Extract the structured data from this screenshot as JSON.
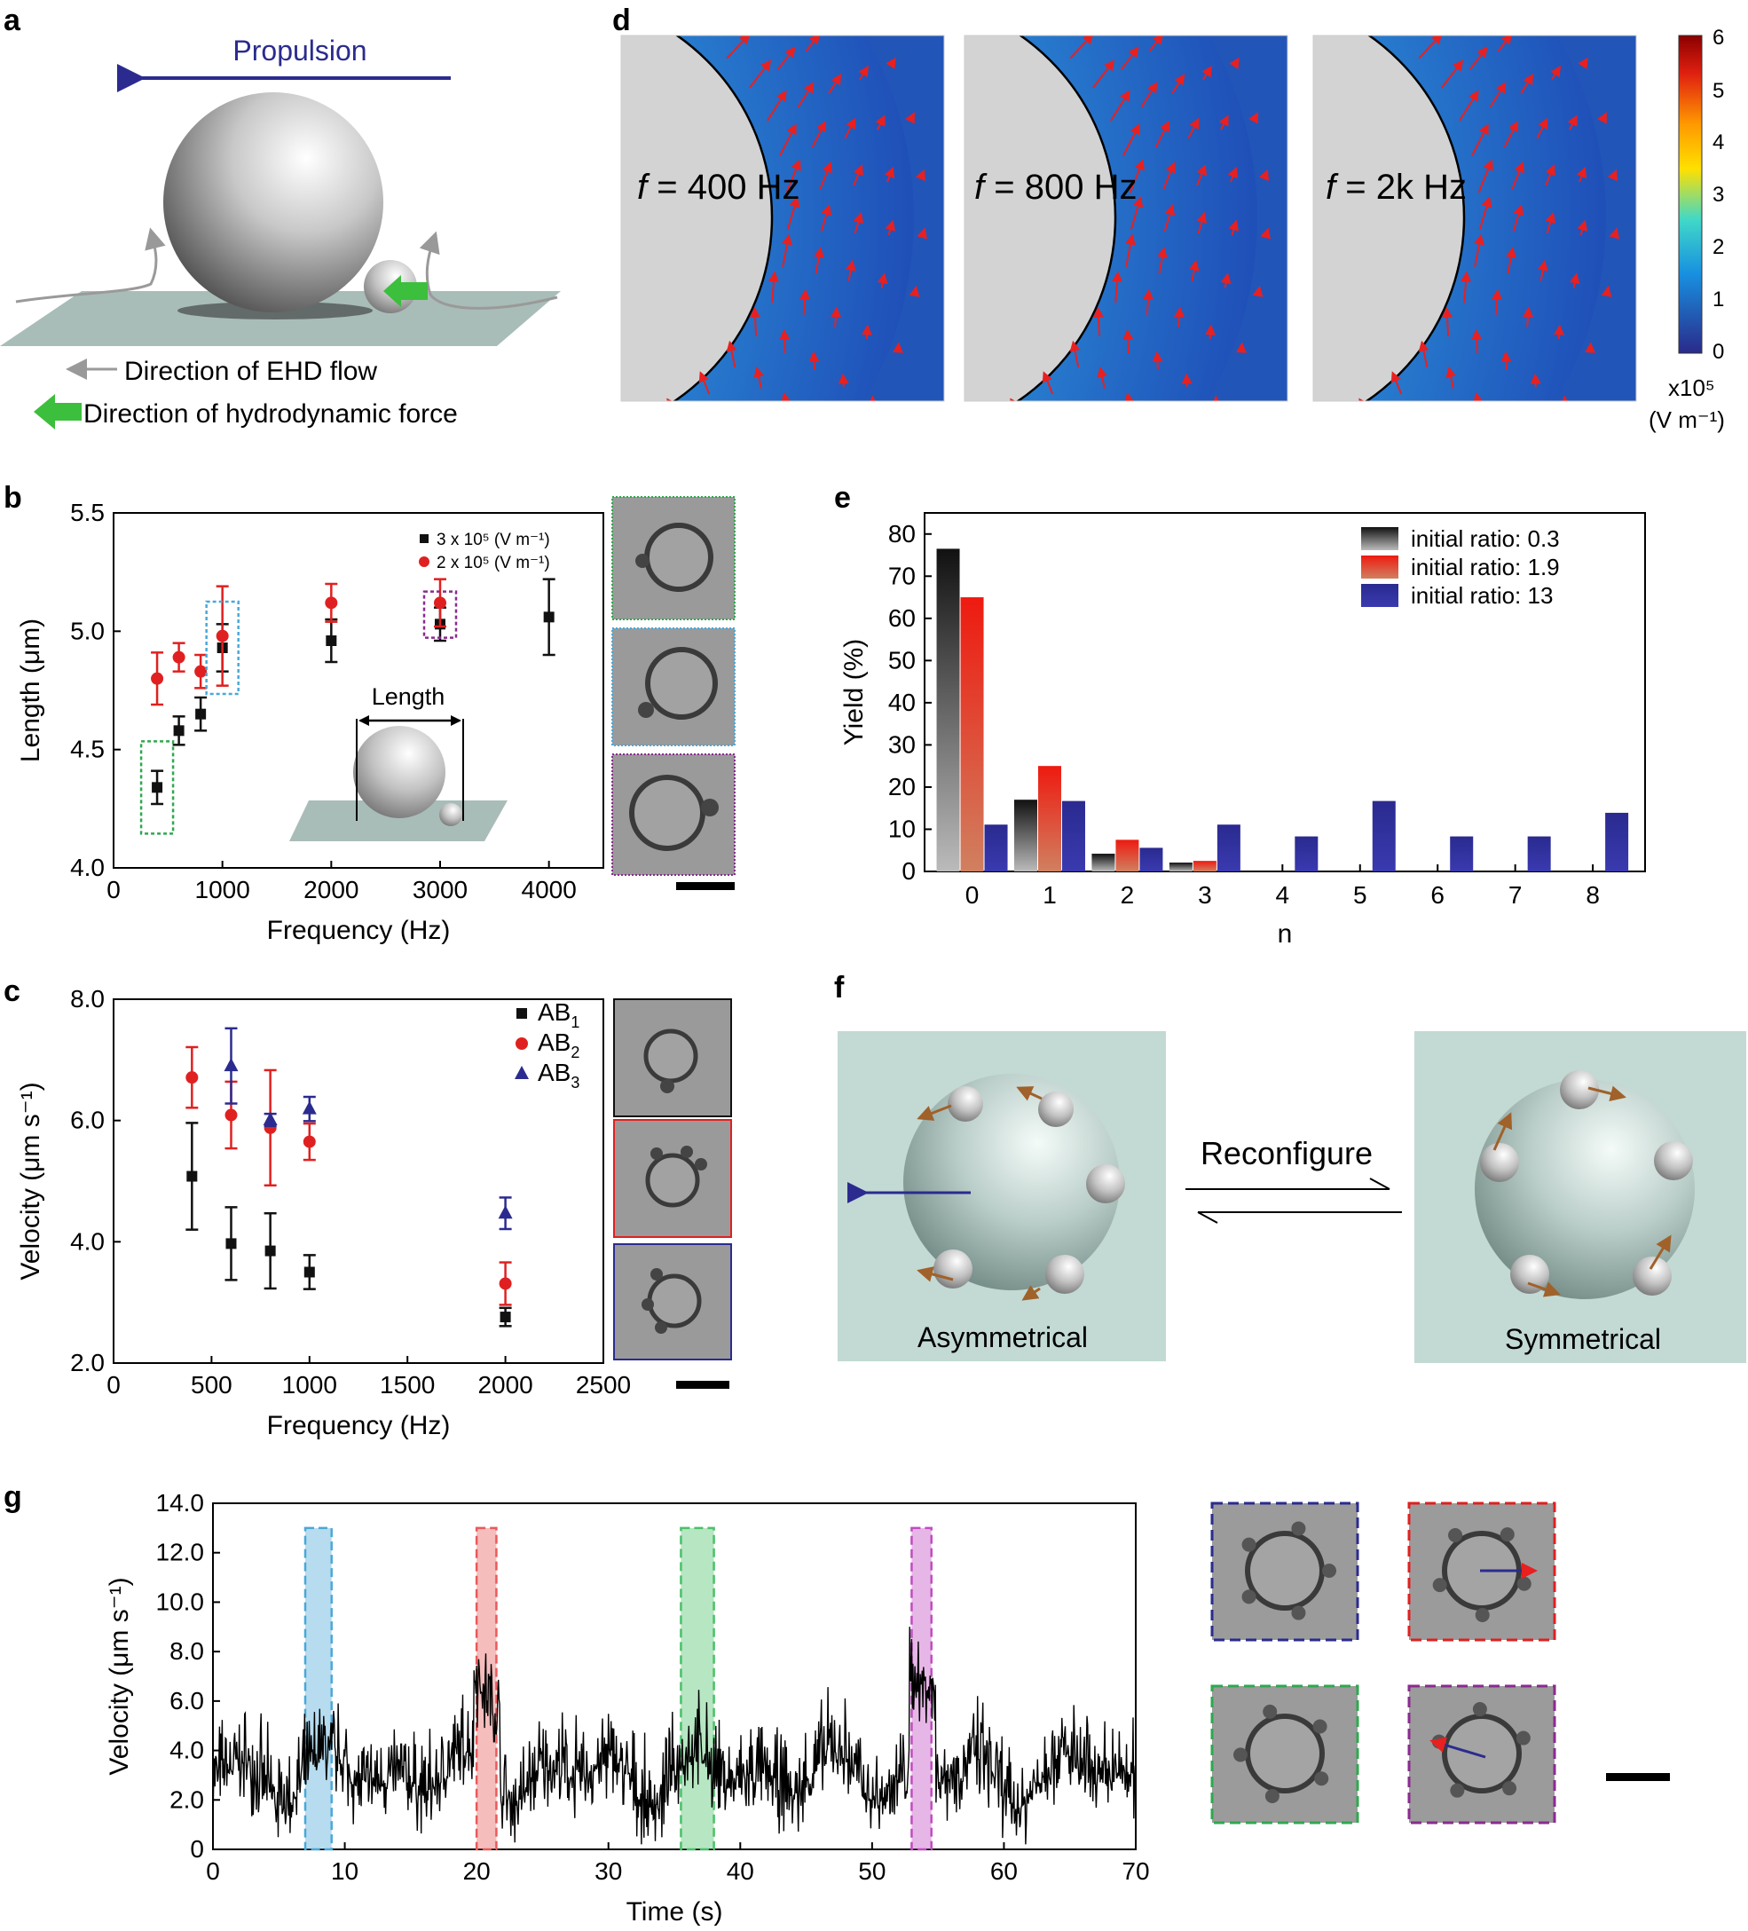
{
  "panel_labels": {
    "a": "a",
    "b": "b",
    "c": "c",
    "d": "d",
    "e": "e",
    "f": "f",
    "g": "g"
  },
  "colors": {
    "navy": "#2b2b8f",
    "red": "#e02020",
    "green": "#2fa84f",
    "purple": "#8a2b8f",
    "blue": "#3a5fb0",
    "brown": "#a0612a",
    "teal": "#c3d9d4"
  },
  "panel_a": {
    "propulsion": "Propulsion",
    "ehd_flow": "Direction of EHD flow",
    "hydro_force": "Direction of hydrodynamic force"
  },
  "panel_d": {
    "maps": [
      {
        "label_f": "f",
        "label_rest": " = 400 Hz"
      },
      {
        "label_f": "f",
        "label_rest": " = 800 Hz"
      },
      {
        "label_f": "f",
        "label_rest": " = 2k Hz"
      }
    ],
    "colorbar": {
      "ticks": [
        "6",
        "5",
        "4",
        "3",
        "2",
        "1",
        "0"
      ],
      "unit_line1": "x10⁵",
      "unit_line2": "(V m⁻¹)"
    }
  },
  "panel_f": {
    "reconfigure": "Reconfigure",
    "asym": "Asymmetrical",
    "sym": "Symmetrical"
  },
  "chart_data": [
    {
      "id": "b",
      "type": "scatter",
      "xlabel": "Frequency (Hz)",
      "ylabel": "Length (μm)",
      "xlim": [
        0,
        4500
      ],
      "ylim": [
        4.0,
        5.5
      ],
      "xticks": [
        "0",
        "1000",
        "2000",
        "3000",
        "4000"
      ],
      "yticks": [
        "4.0",
        "4.5",
        "5.0",
        "5.5"
      ],
      "legend": [
        "3 x 10⁵ (V m⁻¹)",
        "2 x 10⁵ (V m⁻¹)"
      ],
      "inset_label": "Length",
      "series": [
        {
          "name": "3 x 10⁵ (V m⁻¹)",
          "marker": "square",
          "color": "#111111",
          "x": [
            400,
            600,
            800,
            1000,
            2000,
            3000,
            4000
          ],
          "y": [
            4.34,
            4.58,
            4.65,
            4.93,
            4.96,
            5.03,
            5.06
          ],
          "err": [
            0.07,
            0.06,
            0.07,
            0.1,
            0.09,
            0.07,
            0.16
          ]
        },
        {
          "name": "2 x 10⁵ (V m⁻¹)",
          "marker": "circle",
          "color": "#e02020",
          "x": [
            400,
            600,
            800,
            1000,
            2000,
            3000
          ],
          "y": [
            4.8,
            4.89,
            4.83,
            4.98,
            5.12,
            5.12
          ],
          "err": [
            0.11,
            0.06,
            0.07,
            0.21,
            0.08,
            0.1
          ]
        }
      ]
    },
    {
      "id": "c",
      "type": "scatter",
      "xlabel": "Frequency (Hz)",
      "ylabel": "Velocity (μm s⁻¹)",
      "xlim": [
        0,
        2500
      ],
      "ylim": [
        2.0,
        8.0
      ],
      "xticks": [
        "0",
        "500",
        "1000",
        "1500",
        "2000",
        "2500"
      ],
      "yticks": [
        "2.0",
        "4.0",
        "6.0",
        "8.0"
      ],
      "legend": [
        "AB",
        "AB",
        "AB"
      ],
      "legend_sub": [
        "1",
        "2",
        "3"
      ],
      "series": [
        {
          "name": "AB1",
          "marker": "square",
          "color": "#111111",
          "x": [
            400,
            600,
            800,
            1000,
            2000
          ],
          "y": [
            5.08,
            3.97,
            3.85,
            3.5,
            2.76
          ],
          "err": [
            0.88,
            0.6,
            0.62,
            0.28,
            0.15
          ]
        },
        {
          "name": "AB2",
          "marker": "circle",
          "color": "#e02020",
          "x": [
            400,
            600,
            800,
            1000,
            2000
          ],
          "y": [
            6.71,
            6.09,
            5.88,
            5.65,
            3.31
          ],
          "err": [
            0.5,
            0.55,
            0.95,
            0.3,
            0.35
          ]
        },
        {
          "name": "AB3",
          "marker": "triangle",
          "color": "#2b2b8f",
          "x": [
            600,
            800,
            1000,
            2000
          ],
          "y": [
            6.9,
            6.01,
            6.19,
            4.47
          ],
          "err": [
            0.62,
            0.1,
            0.2,
            0.26
          ]
        }
      ]
    },
    {
      "id": "e",
      "type": "bar",
      "xlabel": "n",
      "ylabel": "Yield (%)",
      "categories": [
        "0",
        "1",
        "2",
        "3",
        "4",
        "5",
        "6",
        "7",
        "8"
      ],
      "ylim": [
        0,
        85
      ],
      "yticks": [
        "0",
        "10",
        "20",
        "30",
        "40",
        "50",
        "60",
        "70",
        "80"
      ],
      "series": [
        {
          "name": "initial ratio: 0.3",
          "values": [
            76.5,
            17,
            4.2,
            2.1,
            0,
            0,
            0,
            0,
            0
          ]
        },
        {
          "name": "initial ratio: 1.9",
          "values": [
            65,
            25,
            7.5,
            2.5,
            0,
            0,
            0,
            0,
            0
          ]
        },
        {
          "name": "initial ratio: 13",
          "values": [
            11.1,
            16.7,
            5.6,
            11.1,
            8.3,
            16.7,
            8.3,
            8.3,
            13.9
          ]
        }
      ]
    },
    {
      "id": "g",
      "type": "line",
      "xlabel": "Time (s)",
      "ylabel": "Velocity (μm s⁻¹)",
      "xlim": [
        0,
        70
      ],
      "ylim": [
        0,
        14
      ],
      "xticks": [
        "0",
        "10",
        "20",
        "30",
        "40",
        "50",
        "60",
        "70"
      ],
      "yticks": [
        "0",
        "2.0",
        "4.0",
        "6.0",
        "8.0",
        "10.0",
        "12.0",
        "14.0"
      ],
      "highlight_windows": [
        {
          "from": 7,
          "to": 9,
          "color": "#4aa8d8"
        },
        {
          "from": 20,
          "to": 21.5,
          "color": "#e85a5a"
        },
        {
          "from": 35.5,
          "to": 38,
          "color": "#4cc06a"
        },
        {
          "from": 53,
          "to": 54.5,
          "color": "#c04cc0"
        }
      ]
    }
  ]
}
